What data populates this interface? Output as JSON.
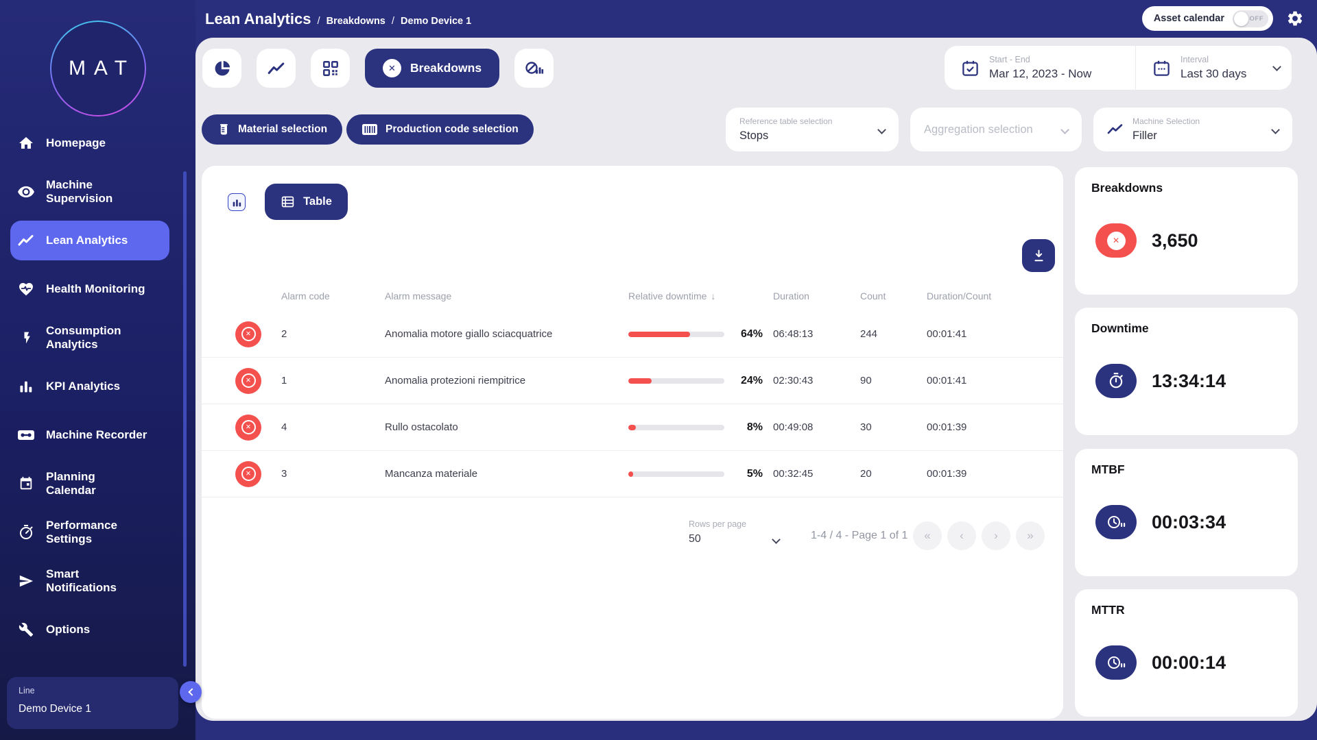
{
  "header": {
    "title": "Lean Analytics",
    "sep": "/",
    "breadcrumbs": [
      "Breakdowns",
      "Demo Device 1"
    ],
    "asset_calendar": {
      "label": "Asset calendar",
      "state": "OFF"
    }
  },
  "sidebar": {
    "logo_text": "MAT",
    "items": [
      {
        "label": "Homepage",
        "icon": "home-icon"
      },
      {
        "label": "Machine\nSupervision",
        "icon": "eye-icon"
      },
      {
        "label": "Lean Analytics",
        "icon": "trend-icon"
      },
      {
        "label": "Health Monitoring",
        "icon": "heart-pulse-icon"
      },
      {
        "label": "Consumption\nAnalytics",
        "icon": "bolt-icon"
      },
      {
        "label": "KPI Analytics",
        "icon": "bar-chart-icon"
      },
      {
        "label": "Machine Recorder",
        "icon": "cassette-icon"
      },
      {
        "label": "Planning\nCalendar",
        "icon": "calendar-icon"
      },
      {
        "label": "Performance\nSettings",
        "icon": "gauge-icon"
      },
      {
        "label": "Smart\nNotifications",
        "icon": "send-icon"
      },
      {
        "label": "Options",
        "icon": "wrench-icon"
      }
    ],
    "device": {
      "label": "Line",
      "name": "Demo Device 1"
    }
  },
  "toolbar": {
    "active_tab": "Breakdowns",
    "date_range": {
      "label": "Start - End",
      "value": "Mar 12, 2023 - Now"
    },
    "interval": {
      "label": "Interval",
      "value": "Last 30 days"
    }
  },
  "filters": {
    "material_label": "Material selection",
    "production_label": "Production code selection",
    "reference": {
      "label": "Reference table selection",
      "value": "Stops"
    },
    "aggregation": {
      "placeholder": "Aggregation selection"
    },
    "machine": {
      "label": "Machine Selection",
      "value": "Filler"
    }
  },
  "view": {
    "table_label": "Table"
  },
  "table": {
    "columns": [
      "Alarm code",
      "Alarm message",
      "Relative downtime",
      "Duration",
      "Count",
      "Duration/Count"
    ],
    "sort_indicator": "↓",
    "rows": [
      {
        "code": "2",
        "message": "Anomalia motore giallo sciacquatrice",
        "pct": 64,
        "pct_label": "64%",
        "duration": "06:48:13",
        "count": "244",
        "duration_count": "00:01:41"
      },
      {
        "code": "1",
        "message": "Anomalia protezioni riempitrice",
        "pct": 24,
        "pct_label": "24%",
        "duration": "02:30:43",
        "count": "90",
        "duration_count": "00:01:41"
      },
      {
        "code": "4",
        "message": "Rullo ostacolato",
        "pct": 8,
        "pct_label": "8%",
        "duration": "00:49:08",
        "count": "30",
        "duration_count": "00:01:39"
      },
      {
        "code": "3",
        "message": "Mancanza materiale",
        "pct": 5,
        "pct_label": "5%",
        "duration": "00:32:45",
        "count": "20",
        "duration_count": "00:01:39"
      }
    ]
  },
  "pagination": {
    "rows_per_page_label": "Rows per page",
    "rows_per_page_value": "50",
    "range_text": "1-4 / 4 - Page 1 of 1",
    "first": "«",
    "prev": "‹",
    "next": "›",
    "last": "»"
  },
  "kpis": [
    {
      "title": "Breakdowns",
      "value": "3,650",
      "icon": "x-circle-icon",
      "accent": "#F4514E"
    },
    {
      "title": "Downtime",
      "value": "13:34:14",
      "icon": "stopwatch-icon",
      "accent": "#2B327E"
    },
    {
      "title": "MTBF",
      "value": "00:03:34",
      "icon": "clock-pause-icon",
      "accent": "#2B327E"
    },
    {
      "title": "MTTR",
      "value": "00:00:14",
      "icon": "clock-pause-icon",
      "accent": "#2B327E"
    }
  ],
  "icons": {
    "x": "✕"
  },
  "colors": {
    "accent_blue": "#2B327E",
    "alert_red": "#F4514E",
    "active_nav": "#5D68EF",
    "panel_bg": "#E9E9EE"
  }
}
